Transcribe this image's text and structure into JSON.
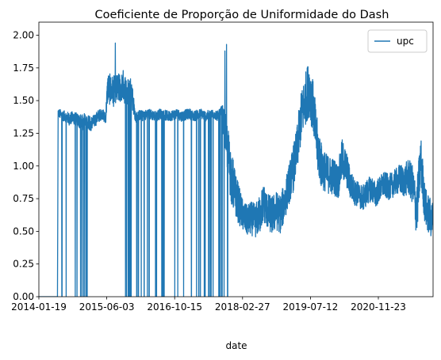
{
  "colors": {
    "series": "#1f77b4",
    "axes": "#000000",
    "legend_border": "#cccccc"
  },
  "chart_data": {
    "type": "line",
    "title": "Coeficiente de Proporção de Uniformidade do Dash",
    "xlabel": "date",
    "ylabel": "",
    "x_tick_labels": [
      "2014-01-19",
      "2015-06-03",
      "2016-10-15",
      "2018-02-27",
      "2019-07-12",
      "2020-11-23"
    ],
    "xlim": [
      "2014-01-19",
      "2021-12-31"
    ],
    "ylim": [
      0.0,
      2.1
    ],
    "y_ticks": [
      0.0,
      0.25,
      0.5,
      0.75,
      1.0,
      1.25,
      1.5,
      1.75,
      2.0
    ],
    "y_tick_labels": [
      "0.00",
      "0.25",
      "0.50",
      "0.75",
      "1.00",
      "1.25",
      "1.50",
      "1.75",
      "2.00"
    ],
    "grid": false,
    "legend_position": "top-right",
    "series": [
      {
        "name": "upc",
        "x": [
          "2014-01-19",
          "2014-03-01",
          "2014-05-01",
          "2014-06-05",
          "2014-06-10",
          "2014-07-01",
          "2014-08-01",
          "2014-09-01",
          "2014-10-01",
          "2014-11-01",
          "2014-12-01",
          "2015-01-01",
          "2015-02-01",
          "2015-03-01",
          "2015-04-01",
          "2015-05-01",
          "2015-05-25",
          "2015-06-10",
          "2015-07-01",
          "2015-08-01",
          "2015-09-01",
          "2015-10-01",
          "2015-11-01",
          "2015-12-01",
          "2016-01-01",
          "2016-02-01",
          "2016-03-01",
          "2016-04-01",
          "2016-05-01",
          "2016-06-01",
          "2016-07-01",
          "2016-08-01",
          "2016-09-01",
          "2016-10-01",
          "2016-11-01",
          "2016-12-01",
          "2017-01-01",
          "2017-02-01",
          "2017-03-01",
          "2017-04-01",
          "2017-05-01",
          "2017-06-01",
          "2017-07-01",
          "2017-08-01",
          "2017-09-01",
          "2017-10-01",
          "2017-11-01",
          "2017-12-01",
          "2018-01-01",
          "2018-02-01",
          "2018-03-01",
          "2018-04-01",
          "2018-05-01",
          "2018-06-01",
          "2018-07-01",
          "2018-08-01",
          "2018-09-01",
          "2018-10-01",
          "2018-11-01",
          "2018-12-01",
          "2019-01-01",
          "2019-02-01",
          "2019-03-01",
          "2019-04-01",
          "2019-05-01",
          "2019-06-01",
          "2019-07-01",
          "2019-08-01",
          "2019-09-01",
          "2019-10-01",
          "2019-11-01",
          "2019-12-01",
          "2020-01-01",
          "2020-02-01",
          "2020-03-01",
          "2020-04-01",
          "2020-05-01",
          "2020-06-01",
          "2020-07-01",
          "2020-08-01",
          "2020-09-01",
          "2020-10-01",
          "2020-11-01",
          "2020-12-01",
          "2021-01-01",
          "2021-02-01",
          "2021-03-01",
          "2021-04-01",
          "2021-05-01",
          "2021-06-01",
          "2021-07-01",
          "2021-08-01",
          "2021-09-01",
          "2021-10-01",
          "2021-11-01",
          "2021-12-01",
          "2021-12-31"
        ],
        "y": [
          0.0,
          0.0,
          0.0,
          0.0,
          1.41,
          1.39,
          1.38,
          1.36,
          1.37,
          1.35,
          1.33,
          1.36,
          1.32,
          1.34,
          1.38,
          1.4,
          1.36,
          1.6,
          1.58,
          1.57,
          1.59,
          1.62,
          1.55,
          1.58,
          1.37,
          1.39,
          1.38,
          1.4,
          1.39,
          1.38,
          1.4,
          1.39,
          1.38,
          1.39,
          1.4,
          1.38,
          1.39,
          1.4,
          1.38,
          1.39,
          1.4,
          1.38,
          1.39,
          1.4,
          1.38,
          1.39,
          1.2,
          0.95,
          0.8,
          0.7,
          0.62,
          0.58,
          0.6,
          0.58,
          0.62,
          0.72,
          0.65,
          0.62,
          0.66,
          0.63,
          0.72,
          0.85,
          0.95,
          1.1,
          1.35,
          1.5,
          1.6,
          1.45,
          1.15,
          1.0,
          0.95,
          0.93,
          0.92,
          0.88,
          1.05,
          0.98,
          0.86,
          0.8,
          0.78,
          0.75,
          0.8,
          0.83,
          0.78,
          0.82,
          0.86,
          0.84,
          0.85,
          0.88,
          0.9,
          0.88,
          0.92,
          0.86,
          0.65,
          1.05,
          0.7,
          0.62,
          0.58
        ],
        "spread": [
          0,
          0,
          0,
          0,
          0.03,
          0.04,
          0.04,
          0.05,
          0.05,
          0.05,
          0.06,
          0.05,
          0.06,
          0.05,
          0.05,
          0.04,
          0.05,
          0.12,
          0.12,
          0.12,
          0.12,
          0.12,
          0.12,
          0.12,
          0.04,
          0.04,
          0.04,
          0.04,
          0.04,
          0.04,
          0.04,
          0.04,
          0.04,
          0.04,
          0.04,
          0.04,
          0.04,
          0.04,
          0.04,
          0.04,
          0.04,
          0.04,
          0.04,
          0.04,
          0.04,
          0.08,
          0.18,
          0.22,
          0.18,
          0.15,
          0.12,
          0.12,
          0.13,
          0.13,
          0.15,
          0.15,
          0.14,
          0.15,
          0.15,
          0.15,
          0.15,
          0.15,
          0.18,
          0.18,
          0.2,
          0.2,
          0.22,
          0.2,
          0.2,
          0.18,
          0.15,
          0.15,
          0.14,
          0.14,
          0.16,
          0.14,
          0.12,
          0.1,
          0.1,
          0.1,
          0.1,
          0.1,
          0.1,
          0.1,
          0.1,
          0.1,
          0.1,
          0.1,
          0.12,
          0.12,
          0.14,
          0.15,
          0.2,
          0.2,
          0.15,
          0.15,
          0.15
        ],
        "drop_windows": [
          [
            "2014-06-10",
            "2014-08-20"
          ],
          [
            "2014-10-05",
            "2015-01-10"
          ],
          [
            "2015-09-20",
            "2017-12-25"
          ]
        ],
        "spikes": [
          [
            "2015-08-05",
            1.94
          ],
          [
            "2017-11-01",
            1.93
          ],
          [
            "2017-10-20",
            1.88
          ]
        ]
      }
    ]
  }
}
